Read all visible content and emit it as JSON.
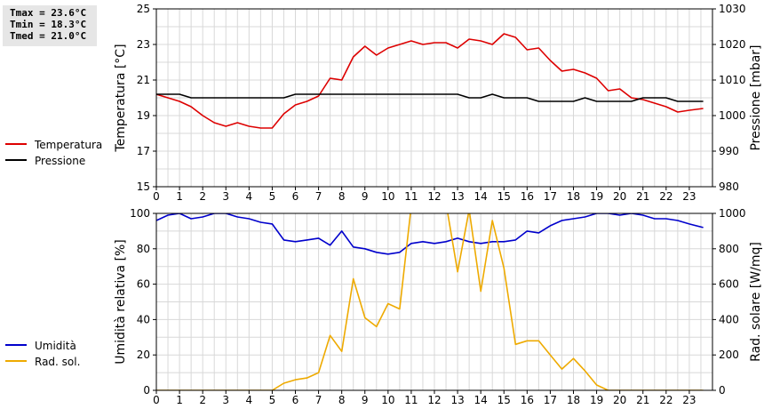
{
  "stats": {
    "tmax": "Tmax = 23.6°C",
    "tmin": "Tmin = 18.3°C",
    "tmed": "Tmed = 21.0°C"
  },
  "chart_data": [
    {
      "type": "line",
      "x_ticks": [
        "0",
        "1",
        "2",
        "3",
        "4",
        "5",
        "6",
        "7",
        "8",
        "9",
        "10",
        "11",
        "12",
        "13",
        "14",
        "15",
        "16",
        "17",
        "18",
        "19",
        "20",
        "21",
        "22",
        "23"
      ],
      "xlim": [
        0,
        24
      ],
      "grid": true,
      "legend_position": "left",
      "ylabel": "Temperatura [°C]",
      "y2label": "Pressione [mbar]",
      "ylim": [
        15,
        25
      ],
      "y_ticks": [
        "15",
        "17",
        "19",
        "21",
        "23",
        "25"
      ],
      "y2lim": [
        980,
        1030
      ],
      "y2_ticks": [
        "980",
        "990",
        "1000",
        "1010",
        "1020",
        "1030"
      ],
      "series": [
        {
          "name": "Temperatura",
          "axis": "left",
          "color": "#dd0000",
          "points": [
            [
              0,
              20.2
            ],
            [
              0.5,
              20.0
            ],
            [
              1,
              19.8
            ],
            [
              1.5,
              19.5
            ],
            [
              2,
              19.0
            ],
            [
              2.5,
              18.6
            ],
            [
              3,
              18.4
            ],
            [
              3.5,
              18.6
            ],
            [
              4,
              18.4
            ],
            [
              4.5,
              18.3
            ],
            [
              5,
              18.3
            ],
            [
              5.5,
              19.1
            ],
            [
              6,
              19.6
            ],
            [
              6.5,
              19.8
            ],
            [
              7,
              20.1
            ],
            [
              7.5,
              21.1
            ],
            [
              8,
              21.0
            ],
            [
              8.5,
              22.3
            ],
            [
              9,
              22.9
            ],
            [
              9.5,
              22.4
            ],
            [
              10,
              22.8
            ],
            [
              10.5,
              23.0
            ],
            [
              11,
              23.2
            ],
            [
              11.5,
              23.0
            ],
            [
              12,
              23.1
            ],
            [
              12.5,
              23.1
            ],
            [
              13,
              22.8
            ],
            [
              13.5,
              23.3
            ],
            [
              14,
              23.2
            ],
            [
              14.5,
              23.0
            ],
            [
              15,
              23.6
            ],
            [
              15.5,
              23.4
            ],
            [
              16,
              22.7
            ],
            [
              16.5,
              22.8
            ],
            [
              17,
              22.1
            ],
            [
              17.5,
              21.5
            ],
            [
              18,
              21.6
            ],
            [
              18.5,
              21.4
            ],
            [
              19,
              21.1
            ],
            [
              19.5,
              20.4
            ],
            [
              20,
              20.5
            ],
            [
              20.5,
              20.0
            ],
            [
              21,
              19.9
            ],
            [
              21.5,
              19.7
            ],
            [
              22,
              19.5
            ],
            [
              22.5,
              19.2
            ],
            [
              23,
              19.3
            ],
            [
              23.6,
              19.4
            ]
          ]
        },
        {
          "name": "Pressione",
          "axis": "right",
          "color": "#000000",
          "points": [
            [
              0,
              1006
            ],
            [
              1,
              1006
            ],
            [
              1.5,
              1005
            ],
            [
              2,
              1005
            ],
            [
              3,
              1005
            ],
            [
              4,
              1005
            ],
            [
              5,
              1005
            ],
            [
              5.5,
              1005
            ],
            [
              6,
              1006
            ],
            [
              7,
              1006
            ],
            [
              8,
              1006
            ],
            [
              9,
              1006
            ],
            [
              10,
              1006
            ],
            [
              11,
              1006
            ],
            [
              12,
              1006
            ],
            [
              13,
              1006
            ],
            [
              13.5,
              1005
            ],
            [
              14,
              1005
            ],
            [
              14.5,
              1006
            ],
            [
              15,
              1005
            ],
            [
              16,
              1005
            ],
            [
              16.5,
              1004
            ],
            [
              17,
              1004
            ],
            [
              18,
              1004
            ],
            [
              18.5,
              1005
            ],
            [
              19,
              1004
            ],
            [
              20,
              1004
            ],
            [
              20.5,
              1004
            ],
            [
              21,
              1005
            ],
            [
              22,
              1005
            ],
            [
              22.5,
              1004
            ],
            [
              23,
              1004
            ],
            [
              23.6,
              1004
            ]
          ]
        }
      ]
    },
    {
      "type": "line",
      "x_ticks": [
        "0",
        "1",
        "2",
        "3",
        "4",
        "5",
        "6",
        "7",
        "8",
        "9",
        "10",
        "11",
        "12",
        "13",
        "14",
        "15",
        "16",
        "17",
        "18",
        "19",
        "20",
        "21",
        "22",
        "23"
      ],
      "xlim": [
        0,
        24
      ],
      "grid": true,
      "legend_position": "left",
      "ylabel": "Umidità relativa [%]",
      "y2label": "Rad. solare [W/mq]",
      "ylim": [
        0,
        100
      ],
      "y_ticks": [
        "0",
        "20",
        "40",
        "60",
        "80",
        "100"
      ],
      "y2lim": [
        0,
        1000
      ],
      "y2_ticks": [
        "0",
        "200",
        "400",
        "600",
        "800",
        "1000"
      ],
      "series": [
        {
          "name": "Umidità",
          "axis": "left",
          "color": "#0000cc",
          "points": [
            [
              0,
              96
            ],
            [
              0.5,
              99
            ],
            [
              1,
              100
            ],
            [
              1.5,
              97
            ],
            [
              2,
              98
            ],
            [
              2.5,
              100
            ],
            [
              3,
              100
            ],
            [
              3.5,
              98
            ],
            [
              4,
              97
            ],
            [
              4.5,
              95
            ],
            [
              5,
              94
            ],
            [
              5.5,
              85
            ],
            [
              6,
              84
            ],
            [
              6.5,
              85
            ],
            [
              7,
              86
            ],
            [
              7.5,
              82
            ],
            [
              8,
              90
            ],
            [
              8.5,
              81
            ],
            [
              9,
              80
            ],
            [
              9.5,
              78
            ],
            [
              10,
              77
            ],
            [
              10.5,
              78
            ],
            [
              11,
              83
            ],
            [
              11.5,
              84
            ],
            [
              12,
              83
            ],
            [
              12.5,
              84
            ],
            [
              13,
              86
            ],
            [
              13.5,
              84
            ],
            [
              14,
              83
            ],
            [
              14.5,
              84
            ],
            [
              15,
              84
            ],
            [
              15.5,
              85
            ],
            [
              16,
              90
            ],
            [
              16.5,
              89
            ],
            [
              17,
              93
            ],
            [
              17.5,
              96
            ],
            [
              18,
              97
            ],
            [
              18.5,
              98
            ],
            [
              19,
              100
            ],
            [
              19.5,
              100
            ],
            [
              20,
              99
            ],
            [
              20.5,
              100
            ],
            [
              21,
              99
            ],
            [
              21.5,
              97
            ],
            [
              22,
              97
            ],
            [
              22.5,
              96
            ],
            [
              23,
              94
            ],
            [
              23.6,
              92
            ]
          ]
        },
        {
          "name": "Rad. sol.",
          "axis": "right",
          "color": "#eeaa00",
          "points": [
            [
              0,
              0
            ],
            [
              1,
              0
            ],
            [
              2,
              0
            ],
            [
              3,
              0
            ],
            [
              4,
              0
            ],
            [
              5,
              0
            ],
            [
              5.5,
              40
            ],
            [
              6,
              60
            ],
            [
              6.5,
              70
            ],
            [
              7,
              100
            ],
            [
              7.5,
              310
            ],
            [
              8,
              220
            ],
            [
              8.5,
              630
            ],
            [
              9,
              410
            ],
            [
              9.5,
              360
            ],
            [
              10,
              490
            ],
            [
              10.5,
              460
            ],
            [
              11,
              1040
            ],
            [
              11.5,
              1100
            ],
            [
              12,
              1080
            ],
            [
              12.5,
              1060
            ],
            [
              13,
              670
            ],
            [
              13.5,
              1020
            ],
            [
              14,
              560
            ],
            [
              14.5,
              960
            ],
            [
              15,
              690
            ],
            [
              15.5,
              260
            ],
            [
              16,
              280
            ],
            [
              16.5,
              280
            ],
            [
              17,
              200
            ],
            [
              17.5,
              120
            ],
            [
              18,
              180
            ],
            [
              18.5,
              110
            ],
            [
              19,
              30
            ],
            [
              19.5,
              0
            ],
            [
              20,
              0
            ],
            [
              21,
              0
            ],
            [
              22,
              0
            ],
            [
              23,
              0
            ],
            [
              23.6,
              0
            ]
          ]
        }
      ]
    }
  ]
}
